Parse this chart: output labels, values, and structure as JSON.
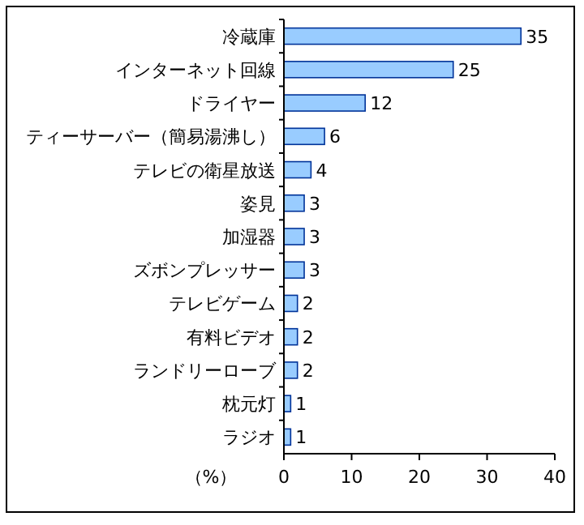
{
  "chart_data": {
    "type": "bar",
    "orientation": "horizontal",
    "categories": [
      "冷蔵庫",
      "インターネット回線",
      "ドライヤー",
      "ティーサーバー（簡易湯沸し）",
      "テレビの衛星放送",
      "姿見",
      "加湿器",
      "ズボンプレッサー",
      "テレビゲーム",
      "有料ビデオ",
      "ランドリーローブ",
      "枕元灯",
      "ラジオ"
    ],
    "values": [
      35,
      25,
      12,
      6,
      4,
      3,
      3,
      3,
      2,
      2,
      2,
      1,
      1
    ],
    "color": "#99ccff",
    "xlim": [
      0,
      40
    ],
    "xticks": [
      0,
      10,
      20,
      30,
      40
    ],
    "xlabel": "（%）",
    "data_labels": true
  }
}
